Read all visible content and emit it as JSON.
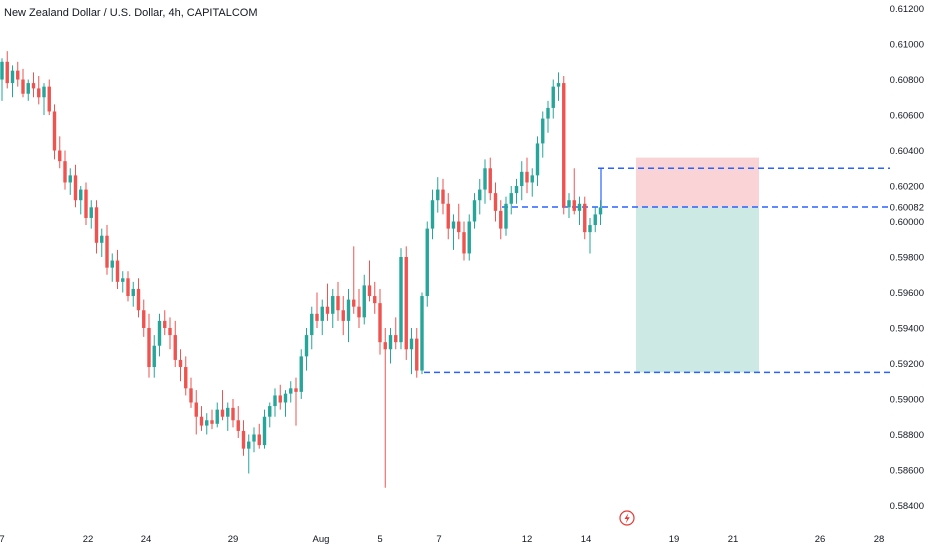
{
  "header": {
    "title": "New Zealand Dollar / U.S. Dollar, 4h, CAPITALCOM"
  },
  "colors": {
    "up": "#26a69a",
    "down": "#ef5350",
    "level_line": "#2962ff",
    "stop_zone": "#f9d3d6",
    "target_zone": "#cce9e4",
    "lightning": "#e53935",
    "axis_text": "#131722"
  },
  "price_scale": {
    "ticks": [
      "0.61200",
      "0.61000",
      "0.60800",
      "0.60600",
      "0.60400",
      "0.60200",
      "0.60082",
      "0.60000",
      "0.59800",
      "0.59600",
      "0.59400",
      "0.59200",
      "0.59000",
      "0.58800",
      "0.58600",
      "0.58400"
    ]
  },
  "time_axis": {
    "labels": [
      "7",
      "22",
      "24",
      "29",
      "Aug",
      "5",
      "7",
      "12",
      "14",
      "19",
      "21",
      "26",
      "28"
    ]
  },
  "events": {
    "icon": "lightning-icon"
  },
  "chart_data": {
    "type": "candlestick",
    "title": "New Zealand Dollar / U.S. Dollar, 4h, CAPITALCOM",
    "ylim": [
      0.5838,
      0.6122
    ],
    "grid": false,
    "levels": [
      0.603,
      0.60082,
      0.5915
    ],
    "position": {
      "side": "short",
      "entry": 0.60082,
      "stop": 0.6036,
      "target": 0.5915
    },
    "candles": [
      [
        0.608,
        0.6092,
        0.6068,
        0.609
      ],
      [
        0.609,
        0.6096,
        0.6075,
        0.6078
      ],
      [
        0.6078,
        0.6088,
        0.607,
        0.6085
      ],
      [
        0.6085,
        0.609,
        0.6076,
        0.608
      ],
      [
        0.608,
        0.6086,
        0.607,
        0.6072
      ],
      [
        0.6072,
        0.608,
        0.6068,
        0.6078
      ],
      [
        0.6078,
        0.6084,
        0.607,
        0.6075
      ],
      [
        0.6075,
        0.6082,
        0.6066,
        0.607
      ],
      [
        0.607,
        0.6078,
        0.606,
        0.6076
      ],
      [
        0.6076,
        0.608,
        0.606,
        0.6062
      ],
      [
        0.6062,
        0.6066,
        0.6035,
        0.604
      ],
      [
        0.604,
        0.6048,
        0.603,
        0.6034
      ],
      [
        0.6034,
        0.604,
        0.6018,
        0.6022
      ],
      [
        0.6022,
        0.603,
        0.6015,
        0.6026
      ],
      [
        0.6026,
        0.6032,
        0.6008,
        0.6012
      ],
      [
        0.6012,
        0.602,
        0.6004,
        0.6018
      ],
      [
        0.6018,
        0.6022,
        0.5998,
        0.6002
      ],
      [
        0.6002,
        0.6012,
        0.5996,
        0.6008
      ],
      [
        0.6008,
        0.6012,
        0.5982,
        0.5988
      ],
      [
        0.5988,
        0.5996,
        0.598,
        0.5992
      ],
      [
        0.5992,
        0.5998,
        0.597,
        0.5974
      ],
      [
        0.5974,
        0.5982,
        0.5966,
        0.5978
      ],
      [
        0.5978,
        0.5984,
        0.5962,
        0.5966
      ],
      [
        0.5966,
        0.5972,
        0.596,
        0.5968
      ],
      [
        0.5968,
        0.5972,
        0.5955,
        0.5958
      ],
      [
        0.5958,
        0.5966,
        0.5952,
        0.5962
      ],
      [
        0.5962,
        0.5968,
        0.5946,
        0.595
      ],
      [
        0.595,
        0.5956,
        0.5935,
        0.594
      ],
      [
        0.594,
        0.5948,
        0.5912,
        0.5918
      ],
      [
        0.5918,
        0.5936,
        0.5912,
        0.593
      ],
      [
        0.593,
        0.5948,
        0.5924,
        0.5944
      ],
      [
        0.5944,
        0.595,
        0.5936,
        0.594
      ],
      [
        0.594,
        0.5946,
        0.5928,
        0.5936
      ],
      [
        0.5936,
        0.5944,
        0.5918,
        0.5922
      ],
      [
        0.5922,
        0.5928,
        0.591,
        0.5918
      ],
      [
        0.5918,
        0.5924,
        0.5902,
        0.5906
      ],
      [
        0.5906,
        0.5912,
        0.5895,
        0.5898
      ],
      [
        0.5898,
        0.5905,
        0.588,
        0.589
      ],
      [
        0.589,
        0.5896,
        0.5882,
        0.5885
      ],
      [
        0.5885,
        0.5892,
        0.588,
        0.5888
      ],
      [
        0.5888,
        0.5894,
        0.5883,
        0.5886
      ],
      [
        0.5886,
        0.5898,
        0.5884,
        0.5894
      ],
      [
        0.5894,
        0.5905,
        0.5888,
        0.589
      ],
      [
        0.589,
        0.5898,
        0.5882,
        0.5895
      ],
      [
        0.5895,
        0.59,
        0.5884,
        0.5888
      ],
      [
        0.5888,
        0.5896,
        0.5878,
        0.5882
      ],
      [
        0.5882,
        0.5888,
        0.5868,
        0.5872
      ],
      [
        0.5872,
        0.588,
        0.5858,
        0.5876
      ],
      [
        0.5876,
        0.5884,
        0.587,
        0.588
      ],
      [
        0.588,
        0.5886,
        0.5872,
        0.5874
      ],
      [
        0.5874,
        0.5894,
        0.5872,
        0.589
      ],
      [
        0.589,
        0.5898,
        0.5884,
        0.5896
      ],
      [
        0.5896,
        0.5906,
        0.589,
        0.5902
      ],
      [
        0.5902,
        0.5908,
        0.5894,
        0.5898
      ],
      [
        0.5898,
        0.5905,
        0.589,
        0.5903
      ],
      [
        0.5903,
        0.591,
        0.5898,
        0.5906
      ],
      [
        0.5906,
        0.5912,
        0.5885,
        0.5904
      ],
      [
        0.5904,
        0.5928,
        0.59,
        0.5924
      ],
      [
        0.5924,
        0.594,
        0.5916,
        0.5936
      ],
      [
        0.5936,
        0.5952,
        0.5928,
        0.5948
      ],
      [
        0.5948,
        0.596,
        0.594,
        0.5944
      ],
      [
        0.5944,
        0.5956,
        0.5936,
        0.5952
      ],
      [
        0.5952,
        0.5965,
        0.5944,
        0.5948
      ],
      [
        0.5948,
        0.5962,
        0.594,
        0.5958
      ],
      [
        0.5958,
        0.5966,
        0.5944,
        0.595
      ],
      [
        0.595,
        0.5958,
        0.5936,
        0.5944
      ],
      [
        0.5944,
        0.5962,
        0.5932,
        0.5956
      ],
      [
        0.5956,
        0.5986,
        0.5948,
        0.5952
      ],
      [
        0.5952,
        0.5962,
        0.594,
        0.5946
      ],
      [
        0.5946,
        0.597,
        0.5942,
        0.5964
      ],
      [
        0.5964,
        0.5978,
        0.5955,
        0.5958
      ],
      [
        0.5958,
        0.5966,
        0.5948,
        0.5954
      ],
      [
        0.5954,
        0.5962,
        0.5925,
        0.5932
      ],
      [
        0.5932,
        0.594,
        0.585,
        0.5928
      ],
      [
        0.5928,
        0.594,
        0.592,
        0.5936
      ],
      [
        0.5936,
        0.5946,
        0.5928,
        0.5932
      ],
      [
        0.5932,
        0.5985,
        0.5928,
        0.598
      ],
      [
        0.598,
        0.5986,
        0.5922,
        0.5928
      ],
      [
        0.5928,
        0.594,
        0.5914,
        0.5934
      ],
      [
        0.5934,
        0.594,
        0.5912,
        0.5916
      ],
      [
        0.5916,
        0.596,
        0.5914,
        0.5958
      ],
      [
        0.5958,
        0.6,
        0.5952,
        0.5996
      ],
      [
        0.5996,
        0.6018,
        0.599,
        0.6012
      ],
      [
        0.6012,
        0.6025,
        0.6005,
        0.6018
      ],
      [
        0.6018,
        0.6024,
        0.6004,
        0.601
      ],
      [
        0.601,
        0.6016,
        0.599,
        0.5996
      ],
      [
        0.5996,
        0.6004,
        0.5984,
        0.6
      ],
      [
        0.6,
        0.601,
        0.599,
        0.5994
      ],
      [
        0.5994,
        0.6,
        0.5978,
        0.5982
      ],
      [
        0.5982,
        0.6004,
        0.5978,
        0.6
      ],
      [
        0.6,
        0.6016,
        0.5996,
        0.6012
      ],
      [
        0.6012,
        0.6024,
        0.6004,
        0.6018
      ],
      [
        0.6018,
        0.6035,
        0.601,
        0.603
      ],
      [
        0.603,
        0.6036,
        0.6012,
        0.6016
      ],
      [
        0.6016,
        0.6022,
        0.6,
        0.6006
      ],
      [
        0.6006,
        0.6012,
        0.599,
        0.5996
      ],
      [
        0.5996,
        0.6014,
        0.5992,
        0.601
      ],
      [
        0.601,
        0.602,
        0.6004,
        0.6016
      ],
      [
        0.6016,
        0.6024,
        0.601,
        0.602
      ],
      [
        0.602,
        0.6034,
        0.6012,
        0.6028
      ],
      [
        0.6028,
        0.6036,
        0.6016,
        0.6022
      ],
      [
        0.6022,
        0.603,
        0.6014,
        0.6026
      ],
      [
        0.6026,
        0.6048,
        0.602,
        0.6044
      ],
      [
        0.6044,
        0.6062,
        0.6036,
        0.6058
      ],
      [
        0.6058,
        0.6068,
        0.605,
        0.6064
      ],
      [
        0.6064,
        0.608,
        0.6058,
        0.6076
      ],
      [
        0.6076,
        0.6084,
        0.6068,
        0.6078
      ],
      [
        0.6078,
        0.6082,
        0.6004,
        0.6008
      ],
      [
        0.6008,
        0.6016,
        0.6002,
        0.6012
      ],
      [
        0.6012,
        0.603,
        0.6004,
        0.6006
      ],
      [
        0.6006,
        0.6014,
        0.5998,
        0.601
      ],
      [
        0.601,
        0.6014,
        0.599,
        0.5994
      ],
      [
        0.5994,
        0.6002,
        0.5982,
        0.5998
      ],
      [
        0.5998,
        0.6008,
        0.5994,
        0.6004
      ],
      [
        0.6004,
        0.6012,
        0.5998,
        0.6008
      ]
    ]
  }
}
